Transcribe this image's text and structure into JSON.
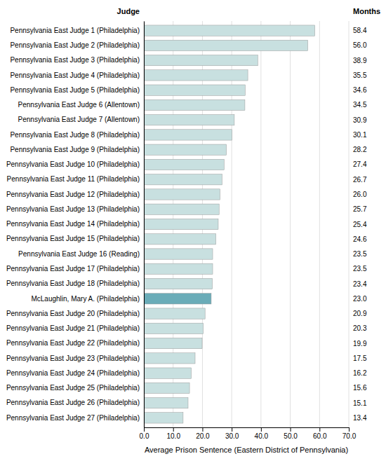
{
  "chart_data": {
    "type": "bar",
    "orientation": "horizontal",
    "xlabel": "Average Prison Sentence (Eastern District of Pennsylvania)",
    "ylabel": "Judge",
    "annotations": [
      "Months"
    ],
    "categories": [
      "Pennsylvania East Judge 1 (Philadelphia)",
      "Pennsylvania East Judge 2 (Philadelphia)",
      "Pennsylvania East Judge 3 (Philadelphia)",
      "Pennsylvania East Judge 4 (Philadelphia)",
      "Pennsylvania East Judge 5 (Philadelphia)",
      "Pennsylvania East Judge 6 (Allentown)",
      "Pennsylvania East Judge 7 (Allentown)",
      "Pennsylvania East Judge 8 (Philadelphia)",
      "Pennsylvania East Judge 9 (Philadelphia)",
      "Pennsylvania East Judge 10 (Philadelphia)",
      "Pennsylvania East Judge 11 (Philadelphia)",
      "Pennsylvania East Judge 12 (Philadelphia)",
      "Pennsylvania East Judge 13 (Philadelphia)",
      "Pennsylvania East Judge 14 (Philadelphia)",
      "Pennsylvania East Judge 15 (Philadelphia)",
      "Pennsylvania East Judge 16 (Reading)",
      "Pennsylvania East Judge 17 (Philadelphia)",
      "Pennsylvania East Judge 18 (Philadelphia)",
      "McLaughlin, Mary A. (Philadelphia)",
      "Pennsylvania East Judge 20 (Philadelphia)",
      "Pennsylvania East Judge 21 (Philadelphia)",
      "Pennsylvania East Judge 22 (Philadelphia)",
      "Pennsylvania East Judge 23 (Philadelphia)",
      "Pennsylvania East Judge 24 (Philadelphia)",
      "Pennsylvania East Judge 25 (Philadelphia)",
      "Pennsylvania East Judge 26 (Philadelphia)",
      "Pennsylvania East Judge 27 (Philadelphia)"
    ],
    "values": [
      58.4,
      56.0,
      38.9,
      35.5,
      34.6,
      34.5,
      30.9,
      30.1,
      28.2,
      27.4,
      26.7,
      26.0,
      25.7,
      25.4,
      24.6,
      23.5,
      23.5,
      23.4,
      23.0,
      20.9,
      20.3,
      19.9,
      17.5,
      16.2,
      15.6,
      15.1,
      13.4
    ],
    "value_labels": [
      "58.4",
      "56.0",
      "38.9",
      "35.5",
      "34.6",
      "34.5",
      "30.9",
      "30.1",
      "28.2",
      "27.4",
      "26.7",
      "26.0",
      "25.7",
      "25.4",
      "24.6",
      "23.5",
      "23.5",
      "23.4",
      "23.0",
      "20.9",
      "20.3",
      "19.9",
      "17.5",
      "16.2",
      "15.6",
      "15.1",
      "13.4"
    ],
    "data_labels": true,
    "colors": [
      "#c8e0e0",
      "#c8e0e0",
      "#c8e0e0",
      "#c8e0e0",
      "#c8e0e0",
      "#c8e0e0",
      "#c8e0e0",
      "#c8e0e0",
      "#c8e0e0",
      "#c8e0e0",
      "#c8e0e0",
      "#c8e0e0",
      "#c8e0e0",
      "#c8e0e0",
      "#c8e0e0",
      "#c8e0e0",
      "#c8e0e0",
      "#c8e0e0",
      "#6aacb8",
      "#c8e0e0",
      "#c8e0e0",
      "#c8e0e0",
      "#c8e0e0",
      "#c8e0e0",
      "#c8e0e0",
      "#c8e0e0",
      "#c8e0e0"
    ],
    "xlim": [
      0,
      70.0
    ],
    "xticks": [
      {
        "value": 0.0,
        "label": "0.0"
      },
      {
        "value": 10.0,
        "label": "10.0"
      },
      {
        "value": 20.0,
        "label": "20.0"
      },
      {
        "value": 30.0,
        "label": "30.0"
      },
      {
        "value": 40.0,
        "label": "40.0"
      },
      {
        "value": 50.0,
        "label": "50.0"
      },
      {
        "value": 60.0,
        "label": "60.0"
      },
      {
        "value": 70.0,
        "label": "70.0"
      }
    ],
    "grid": true
  }
}
